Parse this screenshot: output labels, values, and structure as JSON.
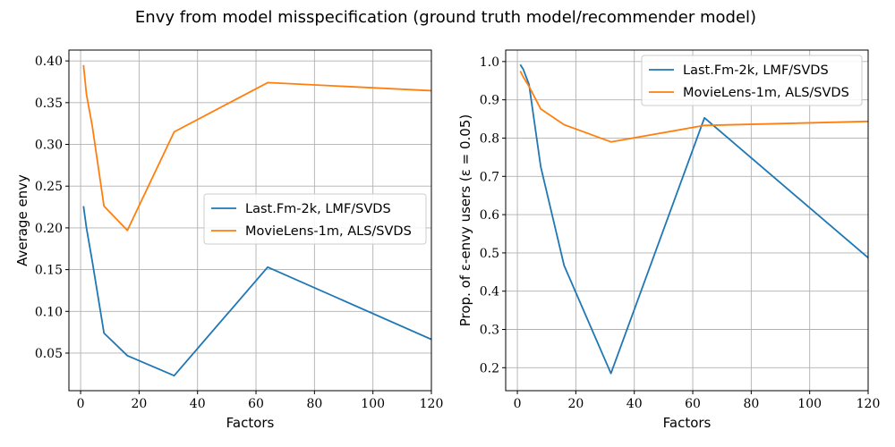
{
  "title": "Envy from model misspecification (ground truth model/recommender model)",
  "chart_data": [
    {
      "type": "line",
      "title": "",
      "xlabel": "Factors",
      "ylabel": "Average envy",
      "xlim": [
        -4,
        120
      ],
      "ylim": [
        0.005,
        0.413
      ],
      "xticks": [
        0,
        20,
        40,
        60,
        80,
        100,
        120
      ],
      "yticks": [
        0.05,
        0.1,
        0.15,
        0.2,
        0.25,
        0.3,
        0.35,
        0.4
      ],
      "grid": true,
      "legend": "center-right",
      "series": [
        {
          "name": "Last.Fm-2k, LMF/SVDS",
          "color": "#1f77b4",
          "x": [
            1,
            2,
            4,
            8,
            16,
            32,
            64,
            128
          ],
          "y": [
            0.226,
            0.2,
            0.16,
            0.074,
            0.047,
            0.023,
            0.153,
            0.054
          ]
        },
        {
          "name": "MovieLens-1m, ALS/SVDS",
          "color": "#ff7f0e",
          "x": [
            1,
            2,
            4,
            8,
            16,
            32,
            64,
            128
          ],
          "y": [
            0.395,
            0.36,
            0.322,
            0.226,
            0.197,
            0.315,
            0.374,
            0.363
          ]
        }
      ]
    },
    {
      "type": "line",
      "title": "",
      "xlabel": "Factors",
      "ylabel": "Prop. of ε-envy users (ε = 0.05)",
      "xlim": [
        -4,
        120
      ],
      "ylim": [
        0.14,
        1.03
      ],
      "xticks": [
        0,
        20,
        40,
        60,
        80,
        100,
        120
      ],
      "yticks": [
        0.2,
        0.3,
        0.4,
        0.5,
        0.6,
        0.7,
        0.8,
        0.9,
        1.0
      ],
      "grid": true,
      "legend": "upper-right",
      "series": [
        {
          "name": "Last.Fm-2k, LMF/SVDS",
          "color": "#1f77b4",
          "x": [
            1,
            2,
            4,
            8,
            16,
            32,
            64,
            128
          ],
          "y": [
            0.992,
            0.98,
            0.94,
            0.725,
            0.467,
            0.185,
            0.853,
            0.435
          ]
        },
        {
          "name": "MovieLens-1m, ALS/SVDS",
          "color": "#ff7f0e",
          "x": [
            1,
            2,
            4,
            8,
            16,
            32,
            64,
            128
          ],
          "y": [
            0.975,
            0.96,
            0.935,
            0.876,
            0.835,
            0.79,
            0.833,
            0.845
          ]
        }
      ]
    }
  ]
}
